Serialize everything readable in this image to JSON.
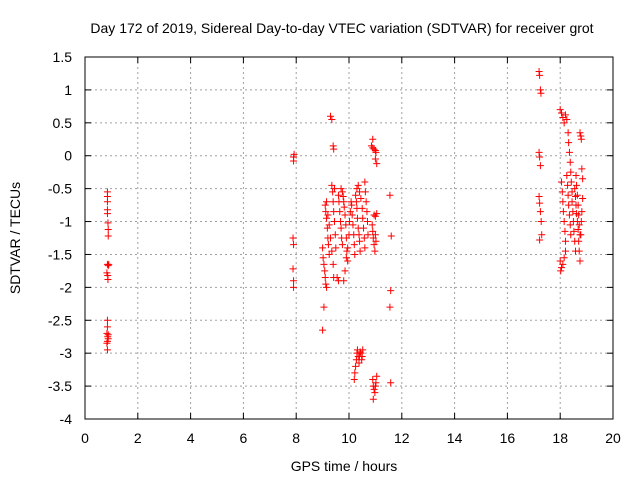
{
  "chart_data": {
    "type": "scatter",
    "title": "Day 172 of 2019, Sidereal Day-to-day VTEC variation (SDTVAR) for receiver grot",
    "xlabel": "GPS time / hours",
    "ylabel": "SDTVAR / TECUs",
    "xlim": [
      0,
      20
    ],
    "ylim": [
      -4,
      1.5
    ],
    "xticks": [
      0,
      2,
      4,
      6,
      8,
      10,
      12,
      14,
      16,
      18,
      20
    ],
    "yticks": [
      -4,
      -3.5,
      -3,
      -2.5,
      -2,
      -1.5,
      -1,
      -0.5,
      0,
      0.5,
      1,
      1.5
    ],
    "xtick_labels": [
      "0",
      "2",
      "4",
      "6",
      "8",
      "10",
      "12",
      "14",
      "16",
      "18",
      "20"
    ],
    "ytick_labels": [
      "-4",
      "-3.5",
      "-3",
      "-2.5",
      "-2",
      "-1.5",
      "-1",
      "-0.5",
      "0",
      "0.5",
      "1",
      "1.5"
    ],
    "grid": true,
    "marker": "+",
    "marker_color": "#ff0000",
    "series": [
      {
        "name": "SDTVAR",
        "points": [
          [
            0.85,
            -0.55
          ],
          [
            0.85,
            -0.62
          ],
          [
            0.85,
            -0.7
          ],
          [
            0.85,
            -0.82
          ],
          [
            0.85,
            -0.88
          ],
          [
            0.87,
            -1.02
          ],
          [
            0.88,
            -1.12
          ],
          [
            0.88,
            -1.22
          ],
          [
            0.85,
            -1.65
          ],
          [
            0.88,
            -1.67
          ],
          [
            0.9,
            -1.65
          ],
          [
            0.83,
            -1.78
          ],
          [
            0.86,
            -1.82
          ],
          [
            0.87,
            -1.88
          ],
          [
            0.85,
            -2.5
          ],
          [
            0.85,
            -2.6
          ],
          [
            0.83,
            -2.7
          ],
          [
            0.86,
            -2.75
          ],
          [
            0.88,
            -2.78
          ],
          [
            0.85,
            -2.82
          ],
          [
            0.83,
            -2.85
          ],
          [
            0.88,
            -2.72
          ],
          [
            0.85,
            -2.95
          ],
          [
            7.9,
            -0.02
          ],
          [
            7.92,
            0.02
          ],
          [
            7.9,
            -0.08
          ],
          [
            7.88,
            -1.25
          ],
          [
            7.9,
            -1.35
          ],
          [
            7.88,
            -1.72
          ],
          [
            7.9,
            -1.9
          ],
          [
            7.9,
            -2.0
          ],
          [
            9.0,
            -1.4
          ],
          [
            9.02,
            -1.55
          ],
          [
            9.05,
            -1.65
          ],
          [
            9.08,
            -1.75
          ],
          [
            9.1,
            -1.85
          ],
          [
            9.12,
            -1.95
          ],
          [
            9.15,
            -2.0
          ],
          [
            9.05,
            -2.3
          ],
          [
            9.0,
            -2.65
          ],
          [
            9.1,
            -0.75
          ],
          [
            9.12,
            -0.85
          ],
          [
            9.15,
            -0.95
          ],
          [
            9.18,
            -1.1
          ],
          [
            9.2,
            -1.25
          ],
          [
            9.22,
            -1.35
          ],
          [
            9.25,
            -1.5
          ],
          [
            9.15,
            -0.7
          ],
          [
            9.2,
            -0.9
          ],
          [
            9.25,
            -1.05
          ],
          [
            9.3,
            -1.25
          ],
          [
            9.35,
            -1.45
          ],
          [
            9.4,
            -1.65
          ],
          [
            9.42,
            -1.85
          ],
          [
            9.35,
            -0.45
          ],
          [
            9.38,
            -0.55
          ],
          [
            9.4,
            -0.7
          ],
          [
            9.42,
            -0.85
          ],
          [
            9.45,
            -1.0
          ],
          [
            9.48,
            -1.2
          ],
          [
            9.5,
            -1.4
          ],
          [
            9.3,
            0.6
          ],
          [
            9.35,
            0.55
          ],
          [
            9.4,
            0.15
          ],
          [
            9.42,
            0.1
          ],
          [
            9.45,
            -0.5
          ],
          [
            9.55,
            -1.85
          ],
          [
            9.6,
            -1.9
          ],
          [
            9.6,
            -0.6
          ],
          [
            9.62,
            -0.7
          ],
          [
            9.65,
            -0.85
          ],
          [
            9.68,
            -1.0
          ],
          [
            9.7,
            -1.1
          ],
          [
            9.72,
            -1.25
          ],
          [
            9.75,
            -1.35
          ],
          [
            9.7,
            -0.5
          ],
          [
            9.75,
            -0.55
          ],
          [
            9.78,
            -0.62
          ],
          [
            9.8,
            -0.7
          ],
          [
            9.82,
            -0.78
          ],
          [
            9.85,
            -0.9
          ],
          [
            9.88,
            -1.05
          ],
          [
            9.9,
            -1.25
          ],
          [
            9.92,
            -1.45
          ],
          [
            9.95,
            -1.6
          ],
          [
            9.8,
            -1.9
          ],
          [
            9.85,
            -1.75
          ],
          [
            9.9,
            -1.55
          ],
          [
            9.95,
            -1.4
          ],
          [
            10.0,
            -1.2
          ],
          [
            10.02,
            -1.0
          ],
          [
            10.05,
            -0.85
          ],
          [
            10.08,
            -0.7
          ],
          [
            10.1,
            -0.75
          ],
          [
            10.12,
            -0.9
          ],
          [
            10.15,
            -1.05
          ],
          [
            10.18,
            -1.2
          ],
          [
            10.2,
            -1.35
          ],
          [
            10.22,
            -1.5
          ],
          [
            10.25,
            -0.6
          ],
          [
            10.28,
            -0.7
          ],
          [
            10.3,
            -0.8
          ],
          [
            10.32,
            -0.95
          ],
          [
            10.35,
            -1.1
          ],
          [
            10.38,
            -1.2
          ],
          [
            10.4,
            -1.3
          ],
          [
            10.42,
            -1.45
          ],
          [
            10.3,
            -0.5
          ],
          [
            10.35,
            -0.45
          ],
          [
            10.4,
            -0.55
          ],
          [
            10.45,
            -0.65
          ],
          [
            10.5,
            -0.8
          ],
          [
            10.52,
            -0.95
          ],
          [
            10.55,
            -1.1
          ],
          [
            10.58,
            -1.25
          ],
          [
            10.6,
            -1.4
          ],
          [
            10.6,
            -0.4
          ],
          [
            10.62,
            -0.55
          ],
          [
            10.65,
            -0.7
          ],
          [
            10.68,
            -0.85
          ],
          [
            10.7,
            -1.0
          ],
          [
            10.72,
            -1.2
          ],
          [
            10.2,
            -3.4
          ],
          [
            10.22,
            -3.3
          ],
          [
            10.25,
            -3.2
          ],
          [
            10.28,
            -3.1
          ],
          [
            10.3,
            -3.0
          ],
          [
            10.32,
            -2.95
          ],
          [
            10.35,
            -3.05
          ],
          [
            10.38,
            -3.15
          ],
          [
            10.4,
            -3.05
          ],
          [
            10.42,
            -2.98
          ],
          [
            10.45,
            -3.0
          ],
          [
            10.48,
            -3.1
          ],
          [
            10.5,
            -3.05
          ],
          [
            10.52,
            -2.95
          ],
          [
            10.88,
            -1.05
          ],
          [
            10.9,
            -1.15
          ],
          [
            10.92,
            -1.25
          ],
          [
            10.95,
            -1.35
          ],
          [
            10.98,
            -1.45
          ],
          [
            11.0,
            -1.2
          ],
          [
            11.02,
            -1.3
          ],
          [
            10.95,
            -0.9
          ],
          [
            11.0,
            -0.92
          ],
          [
            11.05,
            -0.88
          ],
          [
            10.85,
            0.15
          ],
          [
            10.9,
            0.12
          ],
          [
            10.95,
            0.1
          ],
          [
            11.0,
            0.08
          ],
          [
            11.02,
            0.05
          ],
          [
            10.9,
            0.25
          ],
          [
            11.0,
            -0.05
          ],
          [
            11.05,
            -0.12
          ],
          [
            10.9,
            -3.4
          ],
          [
            10.92,
            -3.5
          ],
          [
            10.95,
            -3.55
          ],
          [
            10.98,
            -3.6
          ],
          [
            11.0,
            -3.5
          ],
          [
            11.02,
            -3.45
          ],
          [
            11.05,
            -3.35
          ],
          [
            10.92,
            -3.7
          ],
          [
            11.55,
            -0.6
          ],
          [
            11.6,
            -1.22
          ],
          [
            11.58,
            -2.05
          ],
          [
            11.55,
            -2.3
          ],
          [
            11.58,
            -3.45
          ],
          [
            17.2,
            1.28
          ],
          [
            17.22,
            1.22
          ],
          [
            17.25,
            1.0
          ],
          [
            17.27,
            0.95
          ],
          [
            17.2,
            0.05
          ],
          [
            17.22,
            -0.02
          ],
          [
            17.25,
            -0.15
          ],
          [
            17.2,
            -0.62
          ],
          [
            17.22,
            -0.72
          ],
          [
            17.25,
            -0.85
          ],
          [
            17.28,
            -1.0
          ],
          [
            17.3,
            -1.2
          ],
          [
            17.22,
            -1.28
          ],
          [
            18.0,
            0.7
          ],
          [
            18.05,
            0.65
          ],
          [
            18.1,
            0.58
          ],
          [
            18.15,
            0.5
          ],
          [
            18.2,
            0.62
          ],
          [
            18.25,
            0.55
          ],
          [
            18.0,
            -1.6
          ],
          [
            18.05,
            -1.7
          ],
          [
            18.1,
            -1.65
          ],
          [
            18.15,
            -1.55
          ],
          [
            18.2,
            -1.45
          ],
          [
            18.02,
            -1.75
          ],
          [
            18.05,
            -0.4
          ],
          [
            18.08,
            -0.55
          ],
          [
            18.1,
            -0.7
          ],
          [
            18.12,
            -0.85
          ],
          [
            18.15,
            -1.0
          ],
          [
            18.18,
            -1.15
          ],
          [
            18.2,
            -1.3
          ],
          [
            18.25,
            -0.3
          ],
          [
            18.28,
            -0.45
          ],
          [
            18.3,
            -0.6
          ],
          [
            18.32,
            -0.75
          ],
          [
            18.35,
            -0.9
          ],
          [
            18.38,
            -1.05
          ],
          [
            18.4,
            -1.2
          ],
          [
            18.3,
            0.35
          ],
          [
            18.32,
            0.2
          ],
          [
            18.35,
            0.05
          ],
          [
            18.38,
            -0.1
          ],
          [
            18.4,
            -0.25
          ],
          [
            18.42,
            -0.4
          ],
          [
            18.45,
            -0.55
          ],
          [
            18.45,
            -0.7
          ],
          [
            18.48,
            -0.85
          ],
          [
            18.5,
            -1.0
          ],
          [
            18.52,
            -1.15
          ],
          [
            18.55,
            -1.3
          ],
          [
            18.58,
            -1.45
          ],
          [
            18.55,
            -0.5
          ],
          [
            18.58,
            -0.62
          ],
          [
            18.6,
            -0.75
          ],
          [
            18.62,
            -0.88
          ],
          [
            18.65,
            -1.0
          ],
          [
            18.68,
            -1.12
          ],
          [
            18.6,
            -0.3
          ],
          [
            18.62,
            -0.45
          ],
          [
            18.65,
            -0.6
          ],
          [
            18.68,
            -0.75
          ],
          [
            18.7,
            -0.9
          ],
          [
            18.72,
            -1.05
          ],
          [
            18.75,
            -1.2
          ],
          [
            18.7,
            -1.3
          ],
          [
            18.72,
            -1.45
          ],
          [
            18.75,
            -1.6
          ],
          [
            18.78,
            -1.2
          ],
          [
            18.8,
            -1.0
          ],
          [
            18.82,
            -0.85
          ],
          [
            18.85,
            -0.65
          ],
          [
            18.75,
            0.35
          ],
          [
            18.78,
            0.3
          ],
          [
            18.8,
            0.25
          ],
          [
            18.82,
            -0.2
          ],
          [
            18.85,
            -0.35
          ]
        ]
      }
    ]
  }
}
